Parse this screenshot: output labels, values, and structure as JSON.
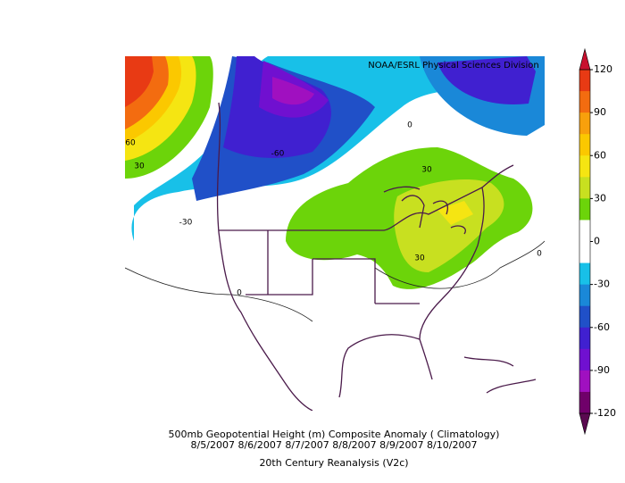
{
  "header": {
    "credit": "NOAA/ESRL Physical Sciences Division"
  },
  "colorbar": {
    "ticks": [
      120,
      90,
      60,
      30,
      0,
      -30,
      -60,
      -90,
      -120
    ],
    "over_color": "#c8102e",
    "under_color": "#5a0a50",
    "colors": [
      "#e83a14",
      "#f36c10",
      "#f8a00c",
      "#fbc800",
      "#f5e512",
      "#c8e020",
      "#6cd40a",
      "#ffffff",
      "#ffffff",
      "#18c0e8",
      "#1a88d8",
      "#2050c8",
      "#4020d0",
      "#7010d0",
      "#a010c0",
      "#70006a"
    ]
  },
  "contour_labels": [
    60,
    30,
    -30,
    -60,
    30,
    30,
    0,
    0,
    0
  ],
  "caption": {
    "title": "500mb Geopotential Height (m) Composite Anomaly ( Climatology)",
    "dates": "8/5/2007 8/6/2007 8/7/2007 8/8/2007 8/9/2007 8/10/2007",
    "source": "20th Century Reanalysis (V2c)"
  }
}
